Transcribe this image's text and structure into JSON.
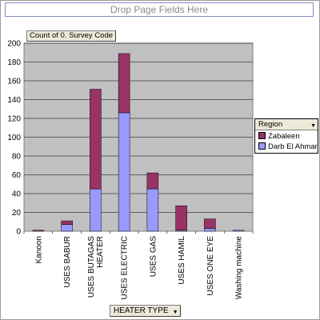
{
  "pivot": {
    "drop_zone_label": "Drop Page Fields Here",
    "data_field_label": "Count of 0. Survey Code",
    "category_field_label": "HEATER TYPE",
    "series_field_label": "Region"
  },
  "chart_data": {
    "type": "bar",
    "stacked": true,
    "categories": [
      "Kanoon",
      "USES BABUR",
      "USES BUTAGAS HEATER",
      "USES ELECTRIC",
      "USES GAS",
      "USES HAMIL",
      "USES ONE EYE",
      "Washing machine"
    ],
    "series": [
      {
        "name": "Darb El Ahmar",
        "color": "#9999ff",
        "values": [
          0,
          7,
          45,
          126,
          45,
          1,
          3,
          1
        ]
      },
      {
        "name": "Zabaleen",
        "color": "#993366",
        "values": [
          1,
          4,
          106,
          63,
          17,
          26,
          10,
          0
        ]
      }
    ],
    "y_ticks": [
      "0",
      "20",
      "40",
      "60",
      "80",
      "100",
      "120",
      "140",
      "160",
      "180",
      "200"
    ],
    "ylim": [
      0,
      200
    ],
    "plot_background": "#c0c0c0",
    "grid": true,
    "legend_position": "right"
  }
}
